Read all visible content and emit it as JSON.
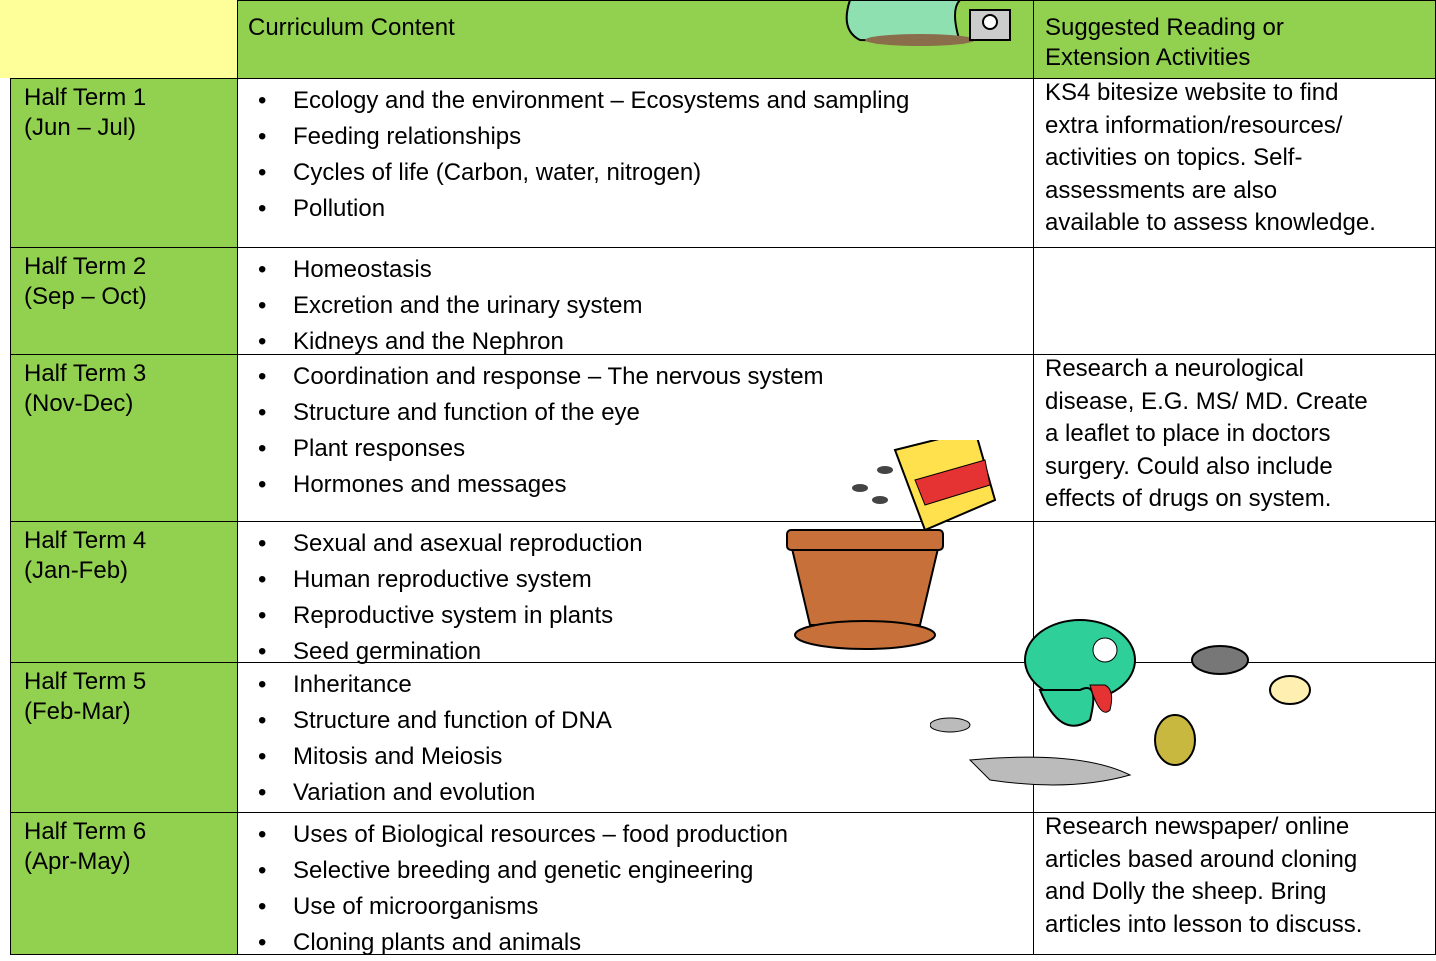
{
  "header": {
    "columns": [
      "Curriculum Content",
      "Suggested Reading or Extension Activities"
    ]
  },
  "rows": [
    {
      "term": "Half Term 1",
      "period": "(Jun – Jul)",
      "topics": [
        "Ecology and the environment – Ecosystems and sampling",
        "Feeding relationships",
        "Cycles of life (Carbon, water, nitrogen)",
        "Pollution"
      ],
      "reading": [
        "KS4 bitesize website to find",
        "extra information/resources/",
        "activities on topics. Self-",
        "assessments are also",
        "available to assess knowledge."
      ]
    },
    {
      "term": "Half Term 2",
      "period": "(Sep – Oct)",
      "topics": [
        "Homeostasis",
        "Excretion and the urinary system",
        "Kidneys and the Nephron"
      ]
    },
    {
      "term": "Half Term 3",
      "period": "(Nov-Dec)",
      "topics": [
        "Coordination and response – The nervous system",
        "Structure and function of the eye",
        "Plant responses",
        "Hormones and messages"
      ],
      "reading": [
        "Research a neurological",
        "disease, E.G. MS/ MD. Create",
        "a leaflet to place in doctors",
        "surgery. Could also include",
        "effects of drugs on system."
      ]
    },
    {
      "term": "Half Term 4",
      "period": "(Jan-Feb)",
      "topics": [
        "Sexual and asexual reproduction",
        "Human reproductive system",
        "Reproductive system in plants",
        "Seed germination"
      ]
    },
    {
      "term": "Half Term 5",
      "period": "(Feb-Mar)",
      "topics": [
        "Inheritance",
        "Structure and function of DNA",
        "Mitosis and Meiosis",
        "Variation and evolution"
      ]
    },
    {
      "term": "Half Term 6",
      "period": "(Apr-May)",
      "topics": [
        "Uses of Biological resources – food production",
        "Selective breeding and genetic engineering",
        "Use of microorganisms",
        "Cloning plants and animals"
      ],
      "reading": [
        "Research newspaper/ online",
        "articles based around cloning",
        "and Dolly the sheep. Bring",
        "articles into lesson to discuss."
      ]
    }
  ]
}
